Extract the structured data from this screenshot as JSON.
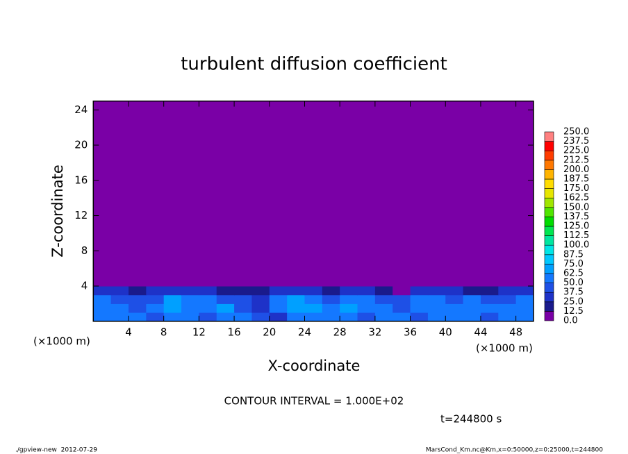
{
  "chart_data": {
    "type": "heatmap",
    "title": "turbulent diffusion coefficient",
    "x_label": "X-coordinate",
    "y_label": "Z-coordinate",
    "x_unit_label": "(×1000 m)",
    "y_unit_label": "(×1000 m)",
    "contour_interval": "CONTOUR INTERVAL = 1.000E+02",
    "time_label": "t=244800 s",
    "footer_left": "./gpview-new  2012-07-29",
    "footer_right": "MarsCond_Km.nc@Km,x=0:50000,z=0:25000,t=244800",
    "xlim": [
      0,
      50
    ],
    "ylim": [
      0,
      25
    ],
    "xticks": [
      4,
      8,
      12,
      16,
      20,
      24,
      28,
      32,
      36,
      40,
      44,
      48
    ],
    "yticks": [
      4,
      8,
      12,
      16,
      20,
      24
    ],
    "xbins": [
      0,
      2,
      4,
      6,
      8,
      10,
      12,
      14,
      16,
      18,
      20,
      22,
      24,
      26,
      28,
      30,
      32,
      34,
      36,
      38,
      40,
      42,
      44,
      46,
      48,
      50
    ],
    "zbins": [
      0,
      1,
      2,
      3,
      4,
      25
    ],
    "values": [
      [
        55,
        60,
        50,
        45,
        55,
        50,
        45,
        55,
        50,
        40,
        35,
        50,
        55,
        60,
        50,
        45,
        55,
        50,
        45,
        50,
        55,
        50,
        45,
        55,
        50
      ],
      [
        60,
        55,
        45,
        60,
        70,
        55,
        60,
        65,
        45,
        30,
        55,
        70,
        65,
        55,
        70,
        60,
        55,
        45,
        50,
        55,
        50,
        55,
        60,
        50,
        55
      ],
      [
        50,
        45,
        40,
        45,
        65,
        60,
        50,
        45,
        40,
        35,
        55,
        65,
        60,
        45,
        60,
        55,
        45,
        40,
        50,
        50,
        45,
        55,
        45,
        40,
        50
      ],
      [
        35,
        25,
        20,
        25,
        30,
        35,
        25,
        20,
        15,
        15,
        30,
        35,
        30,
        20,
        30,
        25,
        20,
        10,
        25,
        30,
        25,
        20,
        20,
        25,
        30
      ],
      [
        5,
        5,
        5,
        5,
        5,
        5,
        5,
        5,
        5,
        5,
        5,
        5,
        5,
        5,
        5,
        5,
        5,
        5,
        5,
        5,
        5,
        5,
        5,
        5,
        5
      ]
    ],
    "levels": [
      {
        "value": 0,
        "label": "0.0"
      },
      12.5,
      {
        "value": 25,
        "label": "25.0"
      },
      37.5,
      {
        "value": 50,
        "label": "50.0"
      },
      62.5,
      {
        "value": 75,
        "label": "75.0"
      },
      87.5,
      {
        "value": 100,
        "label": "100.0"
      },
      112.5,
      {
        "value": 125,
        "label": "125.0"
      },
      137.5,
      {
        "value": 150,
        "label": "150.0"
      },
      162.5,
      {
        "value": 175,
        "label": "175.0"
      },
      187.5,
      {
        "value": 200,
        "label": "200.0"
      },
      212.5,
      {
        "value": 225,
        "label": "225.0"
      },
      237.5,
      {
        "value": 250,
        "label": "250.0"
      }
    ],
    "colors": [
      "#7a00a6",
      "#1a1a8c",
      "#1e32c8",
      "#1e50e6",
      "#1478ff",
      "#00a0ff",
      "#00c8ff",
      "#00e6e6",
      "#00e6a0",
      "#00e650",
      "#00dc00",
      "#50e600",
      "#a0e600",
      "#e6e600",
      "#ffdc00",
      "#ffb400",
      "#ff7800",
      "#ff3c00",
      "#ff0000",
      "#ff8080"
    ]
  }
}
